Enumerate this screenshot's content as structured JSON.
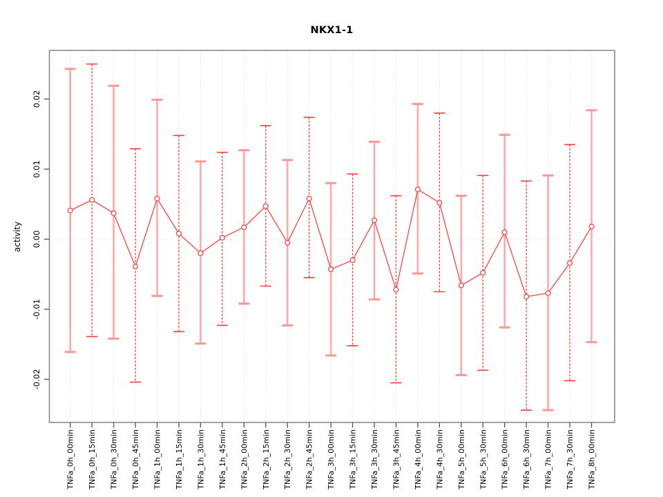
{
  "figure": {
    "kind": "r-style-plot-with-error-bars"
  },
  "colors": {
    "series_red": "#ff4242",
    "error_bar_light": "#ffa8a8",
    "error_bar_light_cap": "#ff9595",
    "error_bar_dark": "#ff3838",
    "point_fill": "#ffffff",
    "frame_gray": "#838383",
    "grid": "#d8d8d8",
    "zero_line": "#e2e2e2",
    "tick": "#5a5a5a",
    "text": "#000000"
  },
  "chart_data": {
    "type": "scatter",
    "subtype": "means-with-error-bars-connected-by-lines",
    "title": "NKX1-1",
    "xlabel": "",
    "ylabel": "activity",
    "ylim": [
      -0.0262,
      0.0269
    ],
    "yticks": [
      -0.02,
      -0.01,
      0.0,
      0.01,
      0.02
    ],
    "grid": "vertical dotted gridline at every category; dotted horizontal line at y=0; no legend",
    "categories": [
      "TNFa_0h_00min",
      "TNFa_0h_15min",
      "TNFa_0h_30min",
      "TNFa_0h_45min",
      "TNFa_1h_00min",
      "TNFa_1h_15min",
      "TNFa_1h_30min",
      "TNFa_1h_45min",
      "TNFa_2h_00min",
      "TNFa_2h_15min",
      "TNFa_2h_30min",
      "TNFa_2h_45min",
      "TNFa_3h_00min",
      "TNFa_3h_15min",
      "TNFa_3h_30min",
      "TNFa_3h_45min",
      "TNFa_4h_00min",
      "TNFa_4h_30min",
      "TNFa_5h_00min",
      "TNFa_5h_30min",
      "TNFa_6h_00min",
      "TNFa_6h_30min",
      "TNFa_7h_00min",
      "TNFa_7h_30min",
      "TNFa_8h_00min"
    ],
    "series": [
      {
        "name": "activity",
        "values": [
          0.0041,
          0.0056,
          0.0037,
          -0.0039,
          0.0058,
          0.0008,
          -0.002,
          0.0002,
          0.0017,
          0.0047,
          -0.0005,
          0.0058,
          -0.0043,
          -0.003,
          0.0027,
          -0.0072,
          0.0071,
          0.0052,
          -0.0066,
          -0.0048,
          0.001,
          -0.0082,
          -0.0077,
          -0.0034,
          0.0018
        ],
        "lower": [
          -0.0161,
          -0.0139,
          -0.0142,
          -0.0204,
          -0.0081,
          -0.0132,
          -0.0149,
          -0.0123,
          -0.0092,
          -0.0067,
          -0.0123,
          -0.0055,
          -0.0166,
          -0.0152,
          -0.0086,
          -0.0205,
          -0.0049,
          -0.0075,
          -0.0194,
          -0.0187,
          -0.0126,
          -0.0244,
          -0.0244,
          -0.0202,
          -0.0147
        ],
        "upper": [
          0.0243,
          0.025,
          0.0219,
          0.0129,
          0.0199,
          0.0148,
          0.0111,
          0.0124,
          0.0127,
          0.0162,
          0.0113,
          0.0174,
          0.008,
          0.0093,
          0.0139,
          0.0062,
          0.0193,
          0.018,
          0.0062,
          0.0091,
          0.0149,
          0.0083,
          0.0091,
          0.0135,
          0.0184
        ]
      }
    ]
  }
}
